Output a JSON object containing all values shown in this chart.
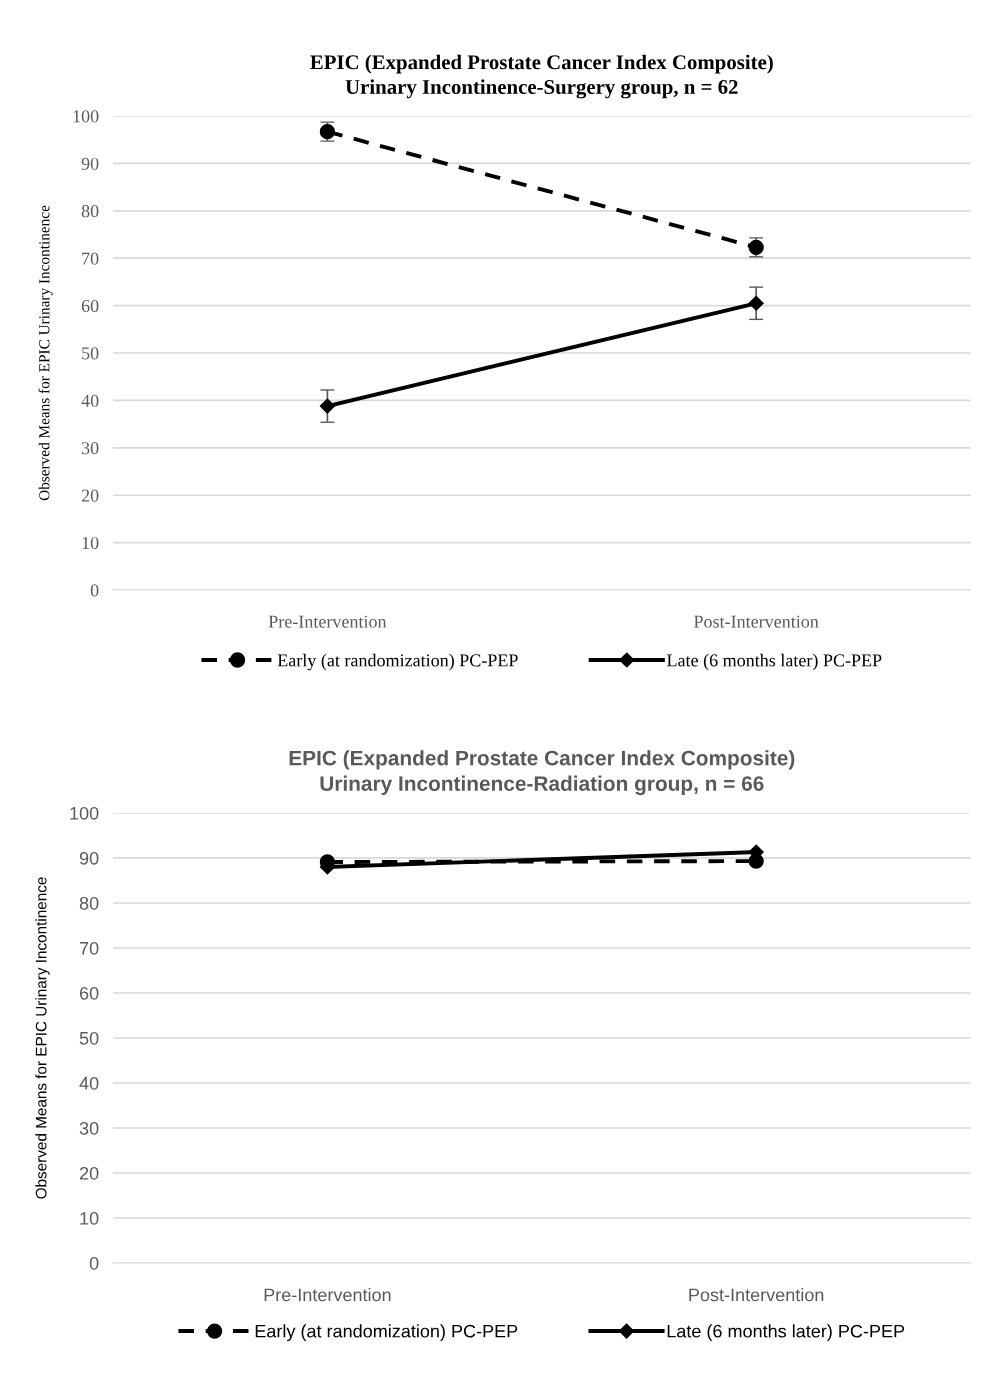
{
  "chart_data": [
    {
      "type": "line",
      "title": "EPIC (Expanded Prostate Cancer Index Composite)\nUrinary Incontinence-Surgery group, n = 62",
      "ylabel": "Observed Means for EPIC Urinary Incontinence",
      "categories": [
        "Pre-Intervention",
        "Post-Intervention"
      ],
      "ylim": [
        0,
        100
      ],
      "yticks": [
        0,
        10,
        20,
        30,
        40,
        50,
        60,
        70,
        80,
        90,
        100
      ],
      "grid": "y",
      "legend": "bottom",
      "series": [
        {
          "name": "Early (at randomization) PC-PEP",
          "color": "#000000",
          "marker": "circle",
          "line_style": "dashed",
          "values": [
            96.7,
            72.3
          ],
          "errors": [
            2.0,
            2.0
          ]
        },
        {
          "name": "Late (6 months later) PC-PEP",
          "color": "#000000",
          "marker": "diamond",
          "line_style": "solid",
          "values": [
            38.8,
            60.5
          ],
          "errors": [
            3.4,
            3.4
          ]
        }
      ]
    },
    {
      "type": "line",
      "title": "EPIC (Expanded Prostate Cancer Index Composite)\nUrinary Incontinence-Radiation group, n = 66",
      "ylabel": "Observed Means for EPIC Urinary Incontinence",
      "categories": [
        "Pre-Intervention",
        "Post-Intervention"
      ],
      "ylim": [
        0,
        100
      ],
      "yticks": [
        0,
        10,
        20,
        30,
        40,
        50,
        60,
        70,
        80,
        90,
        100
      ],
      "grid": "y",
      "legend": "bottom",
      "series": [
        {
          "name": "Early (at randomization) PC-PEP",
          "color": "#000000",
          "marker": "circle",
          "line_style": "dashed",
          "values": [
            89.1,
            89.3
          ]
        },
        {
          "name": "Late (6 months later) PC-PEP",
          "color": "#000000",
          "marker": "diamond",
          "line_style": "solid",
          "values": [
            88.0,
            91.3
          ]
        }
      ]
    }
  ]
}
